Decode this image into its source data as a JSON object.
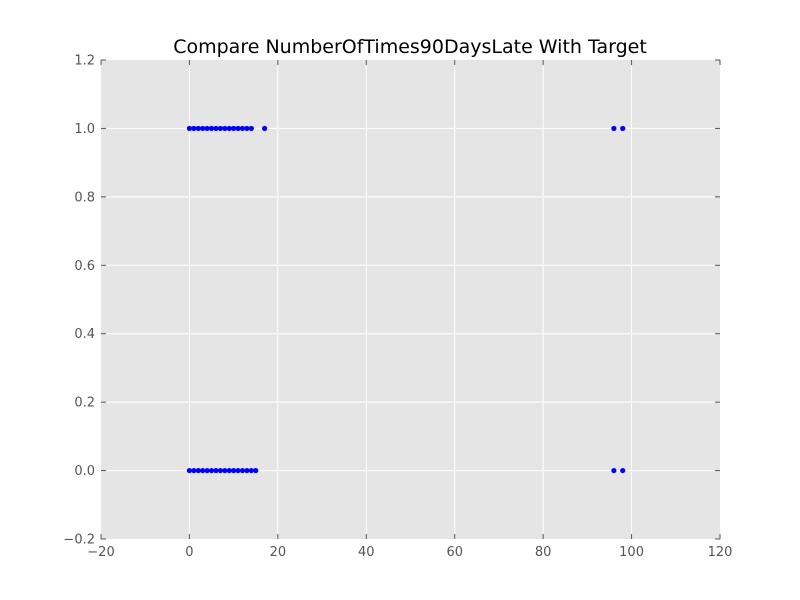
{
  "chart_data": {
    "type": "scatter",
    "title": "Compare NumberOfTimes90DaysLate With Target",
    "xlabel": "",
    "ylabel": "",
    "xlim": [
      -20,
      120
    ],
    "ylim": [
      -0.2,
      1.2
    ],
    "x_ticks": [
      -20,
      0,
      20,
      40,
      60,
      80,
      100,
      120
    ],
    "y_ticks": [
      -0.2,
      0.0,
      0.2,
      0.4,
      0.6,
      0.8,
      1.0,
      1.2
    ],
    "x_tick_labels": [
      "−20",
      "0",
      "20",
      "40",
      "60",
      "80",
      "100",
      "120"
    ],
    "y_tick_labels": [
      "−0.2",
      "0.0",
      "0.2",
      "0.4",
      "0.6",
      "0.8",
      "1.0",
      "1.2"
    ],
    "grid": true,
    "colors": {
      "point": "#0000ff",
      "plot_background": "#e5e5e5",
      "grid": "#ffffff"
    },
    "series": [
      {
        "points": [
          {
            "x": 0,
            "y": 1
          },
          {
            "x": 1,
            "y": 1
          },
          {
            "x": 2,
            "y": 1
          },
          {
            "x": 3,
            "y": 1
          },
          {
            "x": 4,
            "y": 1
          },
          {
            "x": 5,
            "y": 1
          },
          {
            "x": 6,
            "y": 1
          },
          {
            "x": 7,
            "y": 1
          },
          {
            "x": 8,
            "y": 1
          },
          {
            "x": 9,
            "y": 1
          },
          {
            "x": 10,
            "y": 1
          },
          {
            "x": 11,
            "y": 1
          },
          {
            "x": 12,
            "y": 1
          },
          {
            "x": 13,
            "y": 1
          },
          {
            "x": 14,
            "y": 1
          },
          {
            "x": 17,
            "y": 1
          },
          {
            "x": 96,
            "y": 1
          },
          {
            "x": 98,
            "y": 1
          },
          {
            "x": 0,
            "y": 0
          },
          {
            "x": 1,
            "y": 0
          },
          {
            "x": 2,
            "y": 0
          },
          {
            "x": 3,
            "y": 0
          },
          {
            "x": 4,
            "y": 0
          },
          {
            "x": 5,
            "y": 0
          },
          {
            "x": 6,
            "y": 0
          },
          {
            "x": 7,
            "y": 0
          },
          {
            "x": 8,
            "y": 0
          },
          {
            "x": 9,
            "y": 0
          },
          {
            "x": 10,
            "y": 0
          },
          {
            "x": 11,
            "y": 0
          },
          {
            "x": 12,
            "y": 0
          },
          {
            "x": 13,
            "y": 0
          },
          {
            "x": 14,
            "y": 0
          },
          {
            "x": 15,
            "y": 0
          },
          {
            "x": 96,
            "y": 0
          },
          {
            "x": 98,
            "y": 0
          }
        ]
      }
    ]
  }
}
